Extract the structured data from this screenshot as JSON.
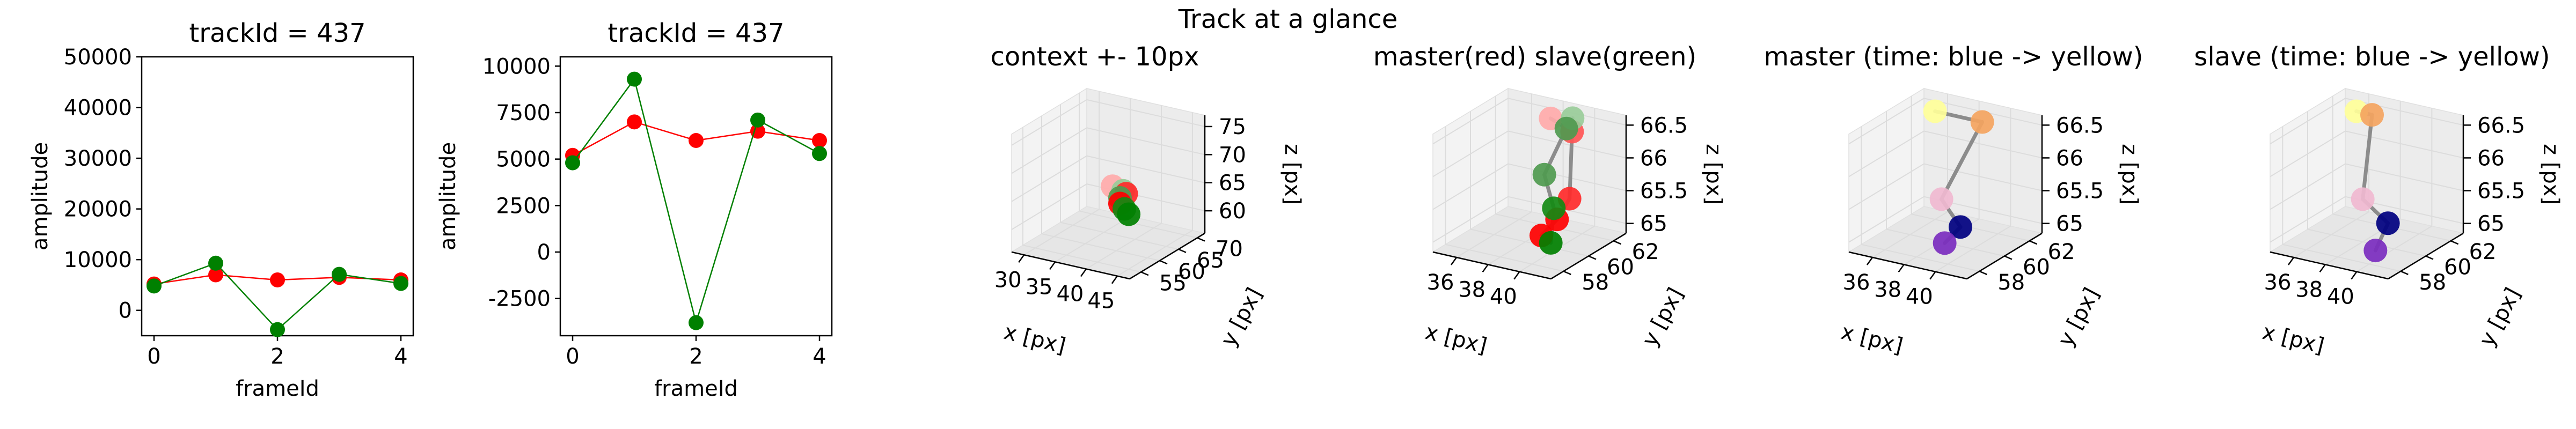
{
  "figure": {
    "suptitle": "Track at a glance"
  },
  "chart_data": [
    {
      "type": "line",
      "title": "trackId = 437",
      "xlabel": "frameId",
      "ylabel": "amplitude",
      "xlim": [
        -0.2,
        4.2
      ],
      "ylim": [
        -5000,
        50000
      ],
      "xticks": [
        0,
        2,
        4
      ],
      "yticks": [
        0,
        10000,
        20000,
        30000,
        40000,
        50000
      ],
      "x": [
        0,
        1,
        2,
        3,
        4
      ],
      "series": [
        {
          "color": "#ff0000",
          "values": [
            5200,
            7000,
            6000,
            6500,
            6000
          ]
        },
        {
          "color": "#008000",
          "values": [
            4800,
            9300,
            -3800,
            7100,
            5300
          ]
        }
      ]
    },
    {
      "type": "line",
      "title": "trackId = 437",
      "xlabel": "frameId",
      "ylabel": "amplitude",
      "xlim": [
        -0.2,
        4.2
      ],
      "ylim": [
        -4500,
        10500
      ],
      "xticks": [
        0,
        2,
        4
      ],
      "yticks": [
        -2500,
        0,
        2500,
        5000,
        7500,
        10000
      ],
      "x": [
        0,
        1,
        2,
        3,
        4
      ],
      "series": [
        {
          "color": "#ff0000",
          "values": [
            5200,
            7000,
            6000,
            6500,
            6000
          ]
        },
        {
          "color": "#008000",
          "values": [
            4800,
            9300,
            -3800,
            7100,
            5300
          ]
        }
      ]
    },
    {
      "type": "scatter",
      "title": "context +- 10px",
      "xlabel": "x [px]",
      "ylabel": "y [px]",
      "zlabel": "z [px]",
      "xlim": [
        28,
        47
      ],
      "ylim": [
        52,
        72
      ],
      "zlim": [
        56,
        77
      ],
      "xticks": [
        30,
        35,
        40,
        45
      ],
      "yticks": [
        55,
        60,
        65,
        70
      ],
      "zticks": [
        60,
        65,
        70,
        75
      ],
      "points": [
        {
          "x": 38.5,
          "y": 61.5,
          "z": 66.5,
          "color": "#ffaaaa"
        },
        {
          "x": 40.5,
          "y": 61.0,
          "z": 66.4,
          "color": "#99cc99"
        },
        {
          "x": 41.0,
          "y": 61.0,
          "z": 66.0,
          "color": "#ff2a2a"
        },
        {
          "x": 40.0,
          "y": 61.0,
          "z": 65.0,
          "color": "#4f9a4f"
        },
        {
          "x": 40.0,
          "y": 61.0,
          "z": 64.0,
          "color": "#ff0000"
        },
        {
          "x": 41.0,
          "y": 60.5,
          "z": 63.5,
          "color": "#138a13"
        },
        {
          "x": 42.0,
          "y": 60.0,
          "z": 63.0,
          "color": "#008000"
        }
      ]
    },
    {
      "type": "scatter",
      "title": "master(red) slave(green)",
      "xlabel": "x [px]",
      "ylabel": "y [px]",
      "zlabel": "z [px]",
      "xlim": [
        34.5,
        42
      ],
      "ylim": [
        57,
        63
      ],
      "zlim": [
        64.85,
        66.65
      ],
      "xticks": [
        36,
        38,
        40
      ],
      "yticks": [
        58,
        60,
        62
      ],
      "zticks": [
        65.0,
        65.5,
        66.0,
        66.5
      ],
      "master": [
        {
          "x": 38.0,
          "y": 62.0,
          "z": 66.5,
          "color": "#ffaaaa"
        },
        {
          "x": 40.0,
          "y": 61.2,
          "z": 66.5,
          "color": "#ff5555"
        },
        {
          "x": 40.0,
          "y": 61.0,
          "z": 65.5,
          "color": "#ff2a2a"
        },
        {
          "x": 40.0,
          "y": 60.0,
          "z": 65.3,
          "color": "#ff0000"
        },
        {
          "x": 39.0,
          "y": 60.0,
          "z": 65.0,
          "color": "#ff0000"
        }
      ],
      "slave": [
        {
          "x": 39.0,
          "y": 62.5,
          "z": 66.5,
          "color": "#99cc99"
        },
        {
          "x": 39.0,
          "y": 62.0,
          "z": 66.4,
          "color": "#4f9a4f"
        },
        {
          "x": 38.0,
          "y": 61.5,
          "z": 65.7,
          "color": "#4f9a4f"
        },
        {
          "x": 39.0,
          "y": 61.0,
          "z": 65.3,
          "color": "#138a13"
        },
        {
          "x": 40.0,
          "y": 59.5,
          "z": 65.0,
          "color": "#008000"
        }
      ]
    },
    {
      "type": "scatter",
      "title": "master (time: blue -> yellow)",
      "xlabel": "x [px]",
      "ylabel": "y [px]",
      "zlabel": "z [px]",
      "xlim": [
        34.5,
        42
      ],
      "ylim": [
        57,
        63
      ],
      "zlim": [
        64.85,
        66.65
      ],
      "xticks": [
        36,
        38,
        40
      ],
      "yticks": [
        58,
        60,
        62
      ],
      "zticks": [
        65.0,
        65.5,
        66.0,
        66.5
      ],
      "points": [
        {
          "x": 36.0,
          "y": 62.0,
          "z": 66.5,
          "color": "#ffff99"
        },
        {
          "x": 39.0,
          "y": 62.0,
          "z": 66.5,
          "color": "#f4a460"
        },
        {
          "x": 38.0,
          "y": 60.0,
          "z": 65.5,
          "color": "#f0b8d0"
        },
        {
          "x": 40.0,
          "y": 59.0,
          "z": 65.3,
          "color": "#000080"
        },
        {
          "x": 39.0,
          "y": 59.0,
          "z": 65.0,
          "color": "#7b2cbf"
        }
      ]
    },
    {
      "type": "scatter",
      "title": "slave (time: blue -> yellow)",
      "xlabel": "x [px]",
      "ylabel": "y [px]",
      "zlabel": "z [px]",
      "xlim": [
        34.5,
        42
      ],
      "ylim": [
        57,
        63
      ],
      "zlim": [
        64.85,
        66.65
      ],
      "xticks": [
        36,
        38,
        40
      ],
      "yticks": [
        58,
        60,
        62
      ],
      "zticks": [
        65.0,
        65.5,
        66.0,
        66.5
      ],
      "points": [
        {
          "x": 36.0,
          "y": 62.0,
          "z": 66.5,
          "color": "#ffff99"
        },
        {
          "x": 37.0,
          "y": 62.0,
          "z": 66.5,
          "color": "#f4a460"
        },
        {
          "x": 38.0,
          "y": 60.0,
          "z": 65.5,
          "color": "#f0b8d0"
        },
        {
          "x": 40.0,
          "y": 59.5,
          "z": 65.3,
          "color": "#000080"
        },
        {
          "x": 40.0,
          "y": 58.5,
          "z": 65.0,
          "color": "#7b2cbf"
        }
      ]
    }
  ]
}
